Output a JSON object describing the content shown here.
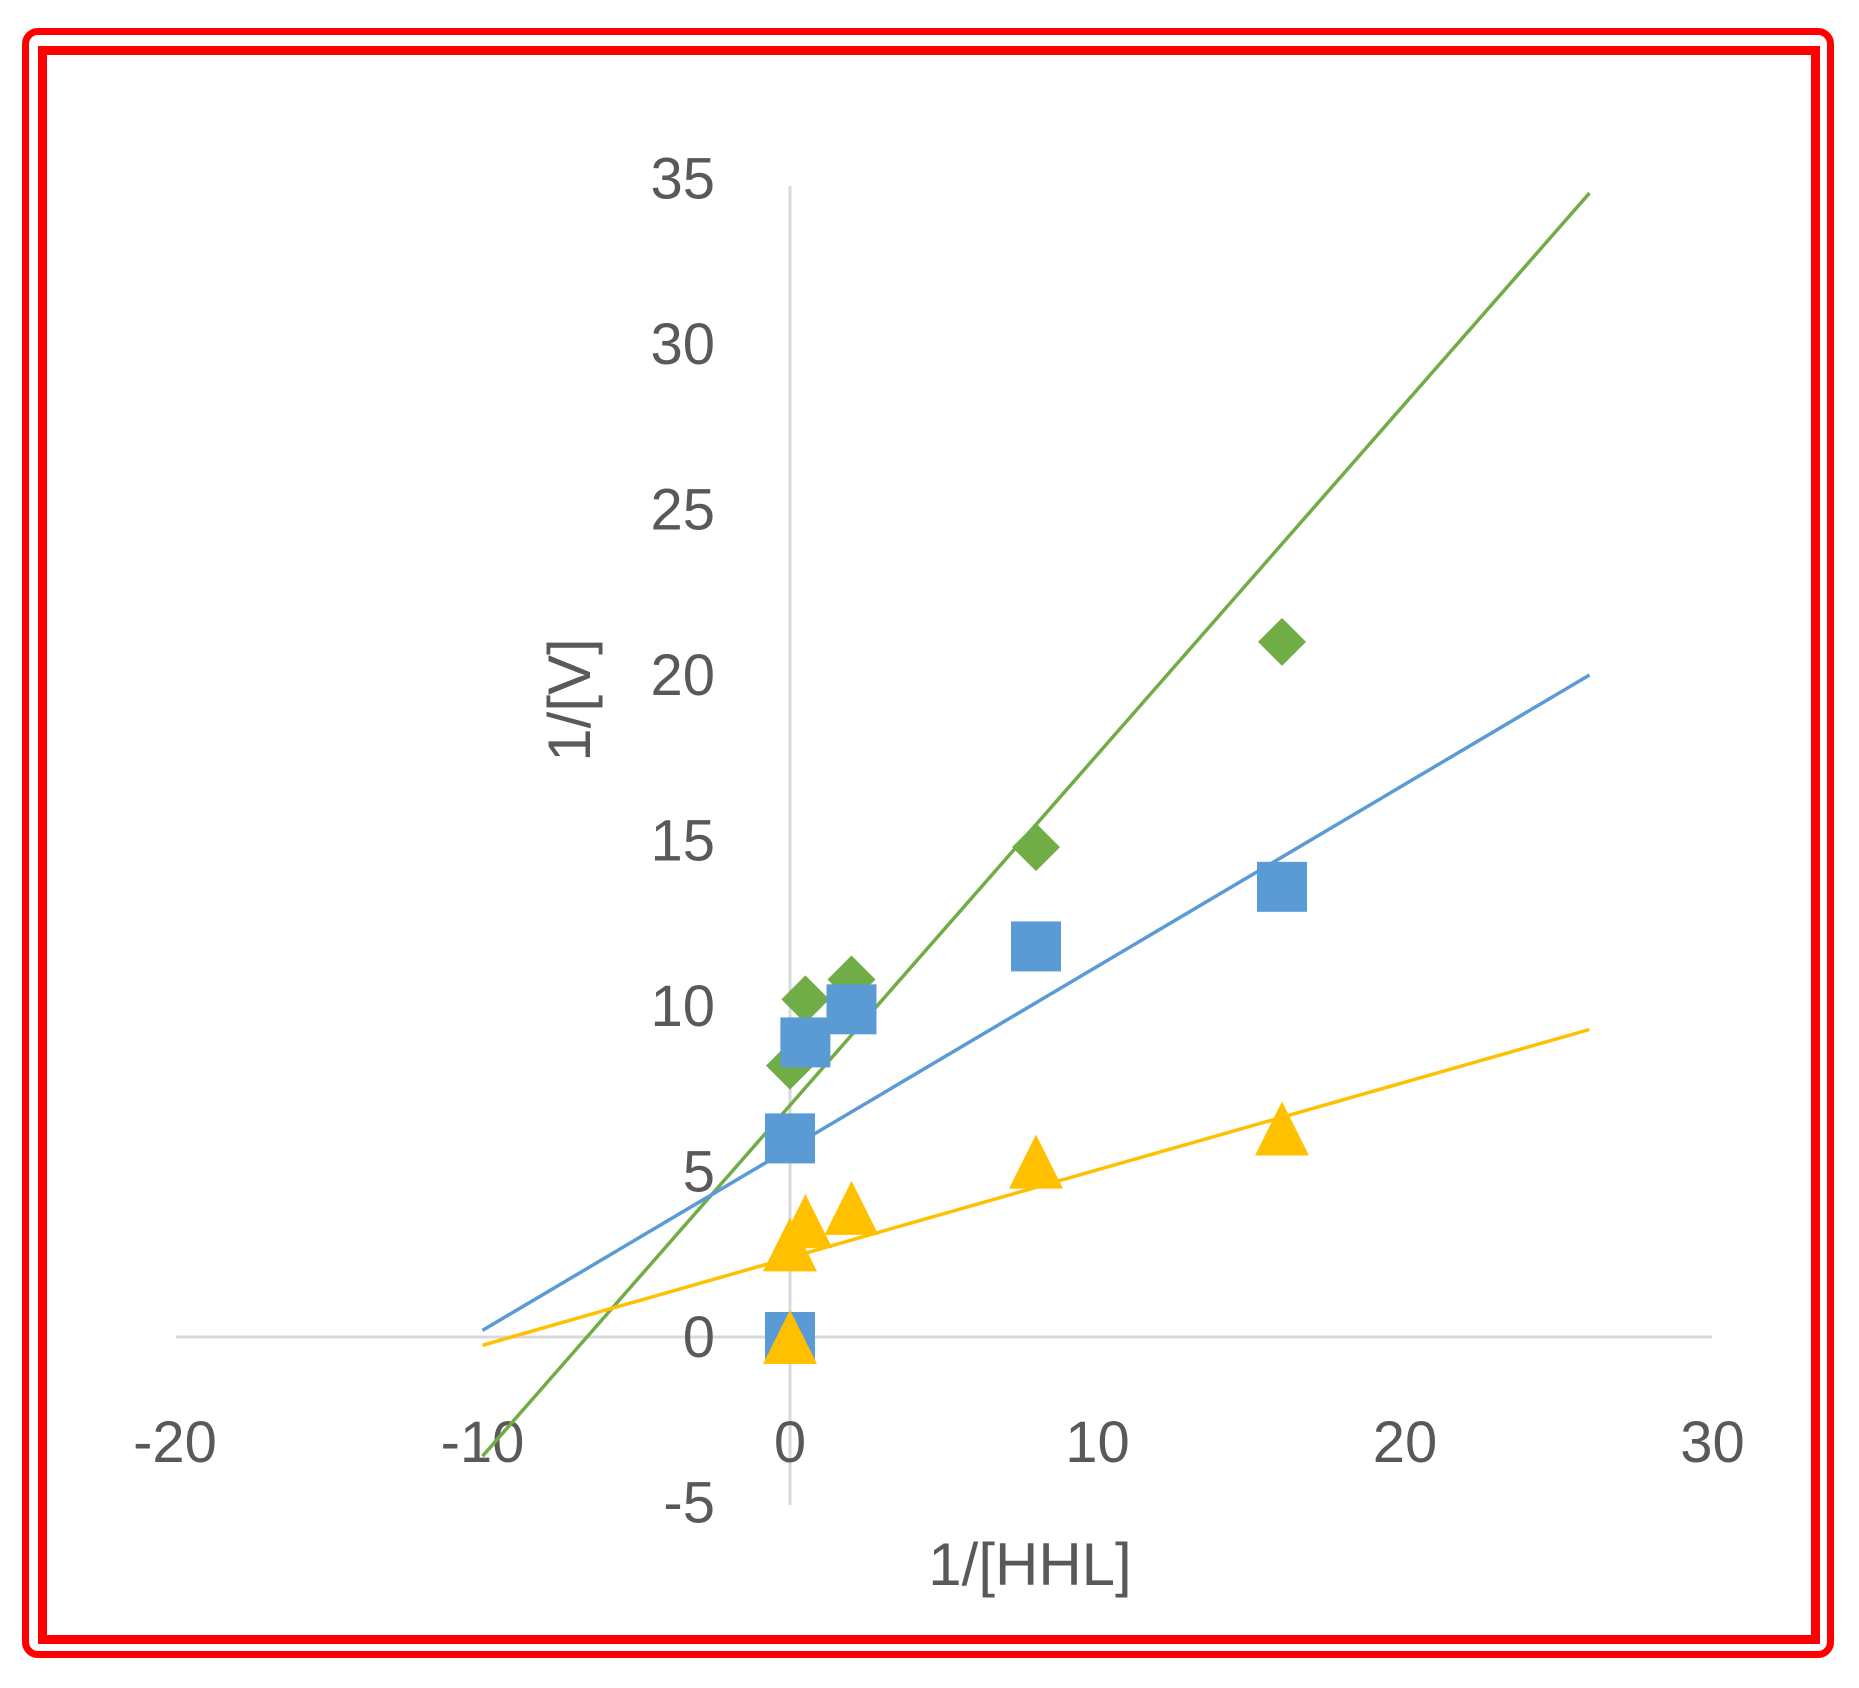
{
  "chart_data": {
    "type": "scatter",
    "xlabel": "1/[HHL]",
    "ylabel": "1/[V]",
    "xlim": [
      -20,
      30
    ],
    "ylim": [
      -5,
      35
    ],
    "x_ticks": [
      -20,
      -10,
      0,
      10,
      20,
      30
    ],
    "y_ticks": [
      -5,
      0,
      5,
      10,
      15,
      20,
      25,
      30,
      35
    ],
    "grid": false,
    "legend": "none",
    "series": [
      {
        "marker": "diamond",
        "color": "#70ad47",
        "points": [
          [
            0,
            0
          ],
          [
            0,
            8.2
          ],
          [
            0.5,
            10.2
          ],
          [
            2,
            10.8
          ],
          [
            8,
            14.8
          ],
          [
            16,
            21
          ]
        ],
        "trendline": {
          "slope": 1.06,
          "intercept": 7.0,
          "x_range": [
            -10,
            26
          ]
        }
      },
      {
        "marker": "square",
        "color": "#5b9bd5",
        "points": [
          [
            0,
            0
          ],
          [
            0,
            6
          ],
          [
            0.5,
            8.9
          ],
          [
            2,
            9.9
          ],
          [
            8,
            11.8
          ],
          [
            16,
            13.6
          ]
        ],
        "trendline": {
          "slope": 0.55,
          "intercept": 5.7,
          "x_range": [
            -10,
            26
          ]
        }
      },
      {
        "marker": "triangle",
        "color": "#ffc000",
        "points": [
          [
            0,
            0
          ],
          [
            0,
            2.8
          ],
          [
            0.5,
            3.5
          ],
          [
            2,
            3.9
          ],
          [
            8,
            5.3
          ],
          [
            16,
            6.3
          ]
        ],
        "trendline": {
          "slope": 0.265,
          "intercept": 2.4,
          "x_range": [
            -10,
            26
          ]
        }
      }
    ]
  }
}
